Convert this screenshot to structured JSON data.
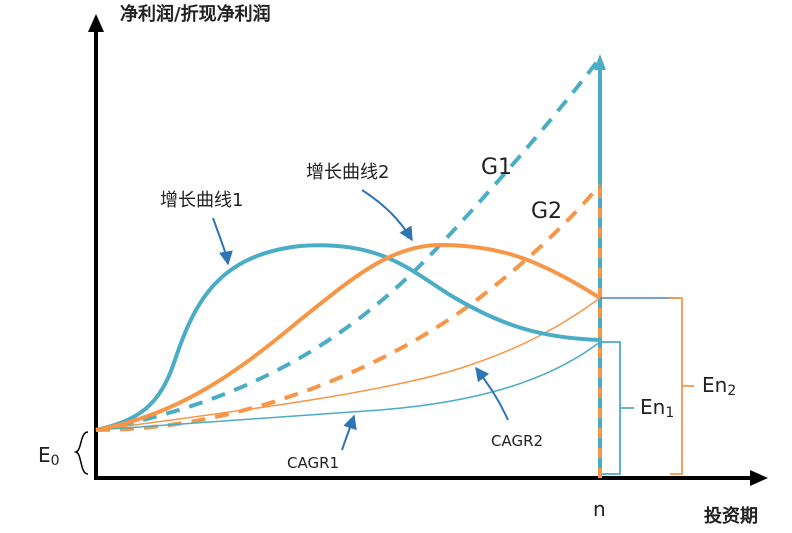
{
  "axes": {
    "y_label": "净利润/折现净利润",
    "x_label": "投资期",
    "x_end_tick": "n"
  },
  "curves": {
    "growth1": {
      "label": "增长曲线1",
      "color": "#4BACC6"
    },
    "growth2": {
      "label": "增长曲线2",
      "color": "#F79646"
    },
    "g1": {
      "label": "G1"
    },
    "g2": {
      "label": "G2"
    },
    "cagr1": {
      "label": "CAGR1"
    },
    "cagr2": {
      "label": "CAGR2"
    }
  },
  "brackets": {
    "e0": {
      "main": "E",
      "sub": "0"
    },
    "en1": {
      "main": "En",
      "sub": "1"
    },
    "en2": {
      "main": "En",
      "sub": "2"
    }
  },
  "colors": {
    "axis": "#000000",
    "blue": "#4BACC6",
    "orange": "#F79646",
    "bracket_blue": "#4F81BD"
  }
}
